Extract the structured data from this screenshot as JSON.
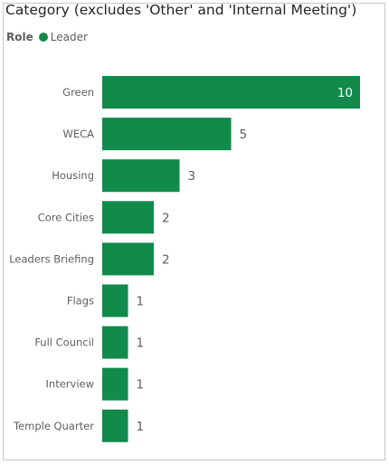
{
  "chart_data": {
    "type": "bar",
    "orientation": "horizontal",
    "title": "Category (excludes 'Other' and 'Internal Meeting')",
    "legend": {
      "title": "Role",
      "placement": "top-left",
      "entries": [
        {
          "name": "Leader",
          "color": "#118a4b"
        }
      ]
    },
    "categories": [
      "Green",
      "WECA",
      "Housing",
      "Core Cities",
      "Leaders Briefing",
      "Flags",
      "Full Council",
      "Interview",
      "Temple Quarter"
    ],
    "series": [
      {
        "name": "Leader",
        "color": "#118a4b",
        "values": [
          10,
          5,
          3,
          2,
          2,
          1,
          1,
          1,
          1
        ]
      }
    ],
    "xlim": [
      0,
      10
    ],
    "xlabel": "",
    "ylabel": "",
    "grid": false,
    "data_labels": true
  }
}
